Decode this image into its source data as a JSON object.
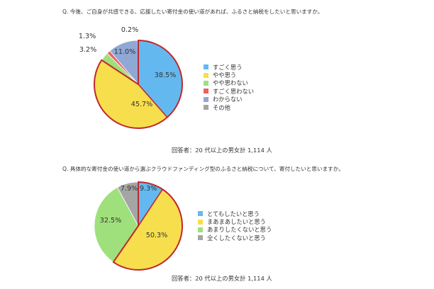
{
  "chart_data": [
    {
      "type": "pie",
      "title": "Q.  今後、ご自身が共感できる、応援したい寄付金の使い道があれば、ふるさと納税をしたいと思いますか。",
      "categories": [
        "すごく思う",
        "やや思う",
        "やや思わない",
        "すごく思わない",
        "わからない",
        "その他"
      ],
      "values": [
        38.5,
        45.7,
        3.2,
        1.3,
        11.0,
        0.2
      ],
      "labels": [
        "38.5%",
        "45.7%",
        "3.2%",
        "1.3%",
        "11.0%",
        "0.2%"
      ],
      "colors": [
        "#63b9ef",
        "#f7de4d",
        "#9fe07c",
        "#ee6161",
        "#8fa8d6",
        "#a5a5a5"
      ],
      "highlight": "すごく思う, やや思う",
      "highlight_color": "#c0282d",
      "legend": "right",
      "note": "回答者：20 代以上の男女計 1,114 人"
    },
    {
      "type": "pie",
      "title": "Q.  具体的な寄付金の使い道から選ぶクラウドファンディング型のふるさと納税について、寄付したいと思いますか。",
      "categories": [
        "とてもしたいと思う",
        "まあまあしたいと思う",
        "あまりしたくないと思う",
        "全くしたくないと思う"
      ],
      "values": [
        9.3,
        50.3,
        32.5,
        7.9
      ],
      "labels": [
        "9.3%",
        "50.3%",
        "32.5%",
        "7.9%"
      ],
      "colors": [
        "#63b9ef",
        "#f7de4d",
        "#9fe07c",
        "#a5a5a5"
      ],
      "highlight": "とてもしたいと思う, まあまあしたいと思う",
      "highlight_color": "#c0282d",
      "legend": "right",
      "note": "回答者：20 代以上の男女計 1,114 人"
    }
  ]
}
